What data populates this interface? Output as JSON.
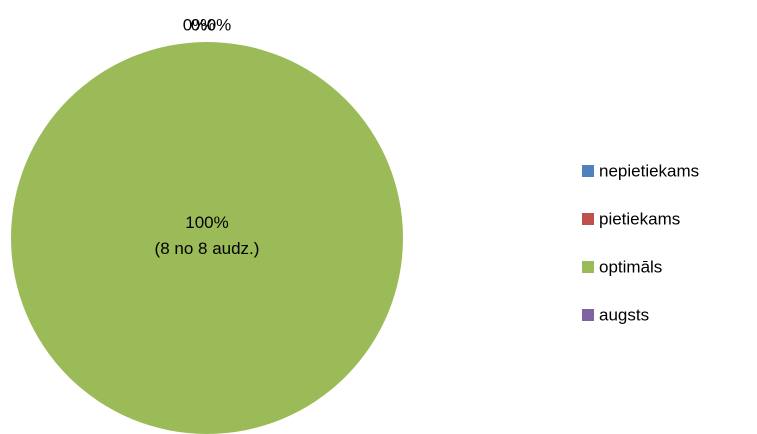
{
  "chart_data": {
    "type": "pie",
    "categories": [
      "nepietiekams",
      "pietiekams",
      "optimāls",
      "augsts"
    ],
    "values": [
      0,
      0,
      100,
      0
    ],
    "value_labels": [
      "0%",
      "0%",
      "100%\n(8 no 8 audz.)",
      "0%"
    ],
    "colors": [
      "#4f81bd",
      "#c0504d",
      "#9bbb59",
      "#8064a2"
    ],
    "legend": "right"
  }
}
